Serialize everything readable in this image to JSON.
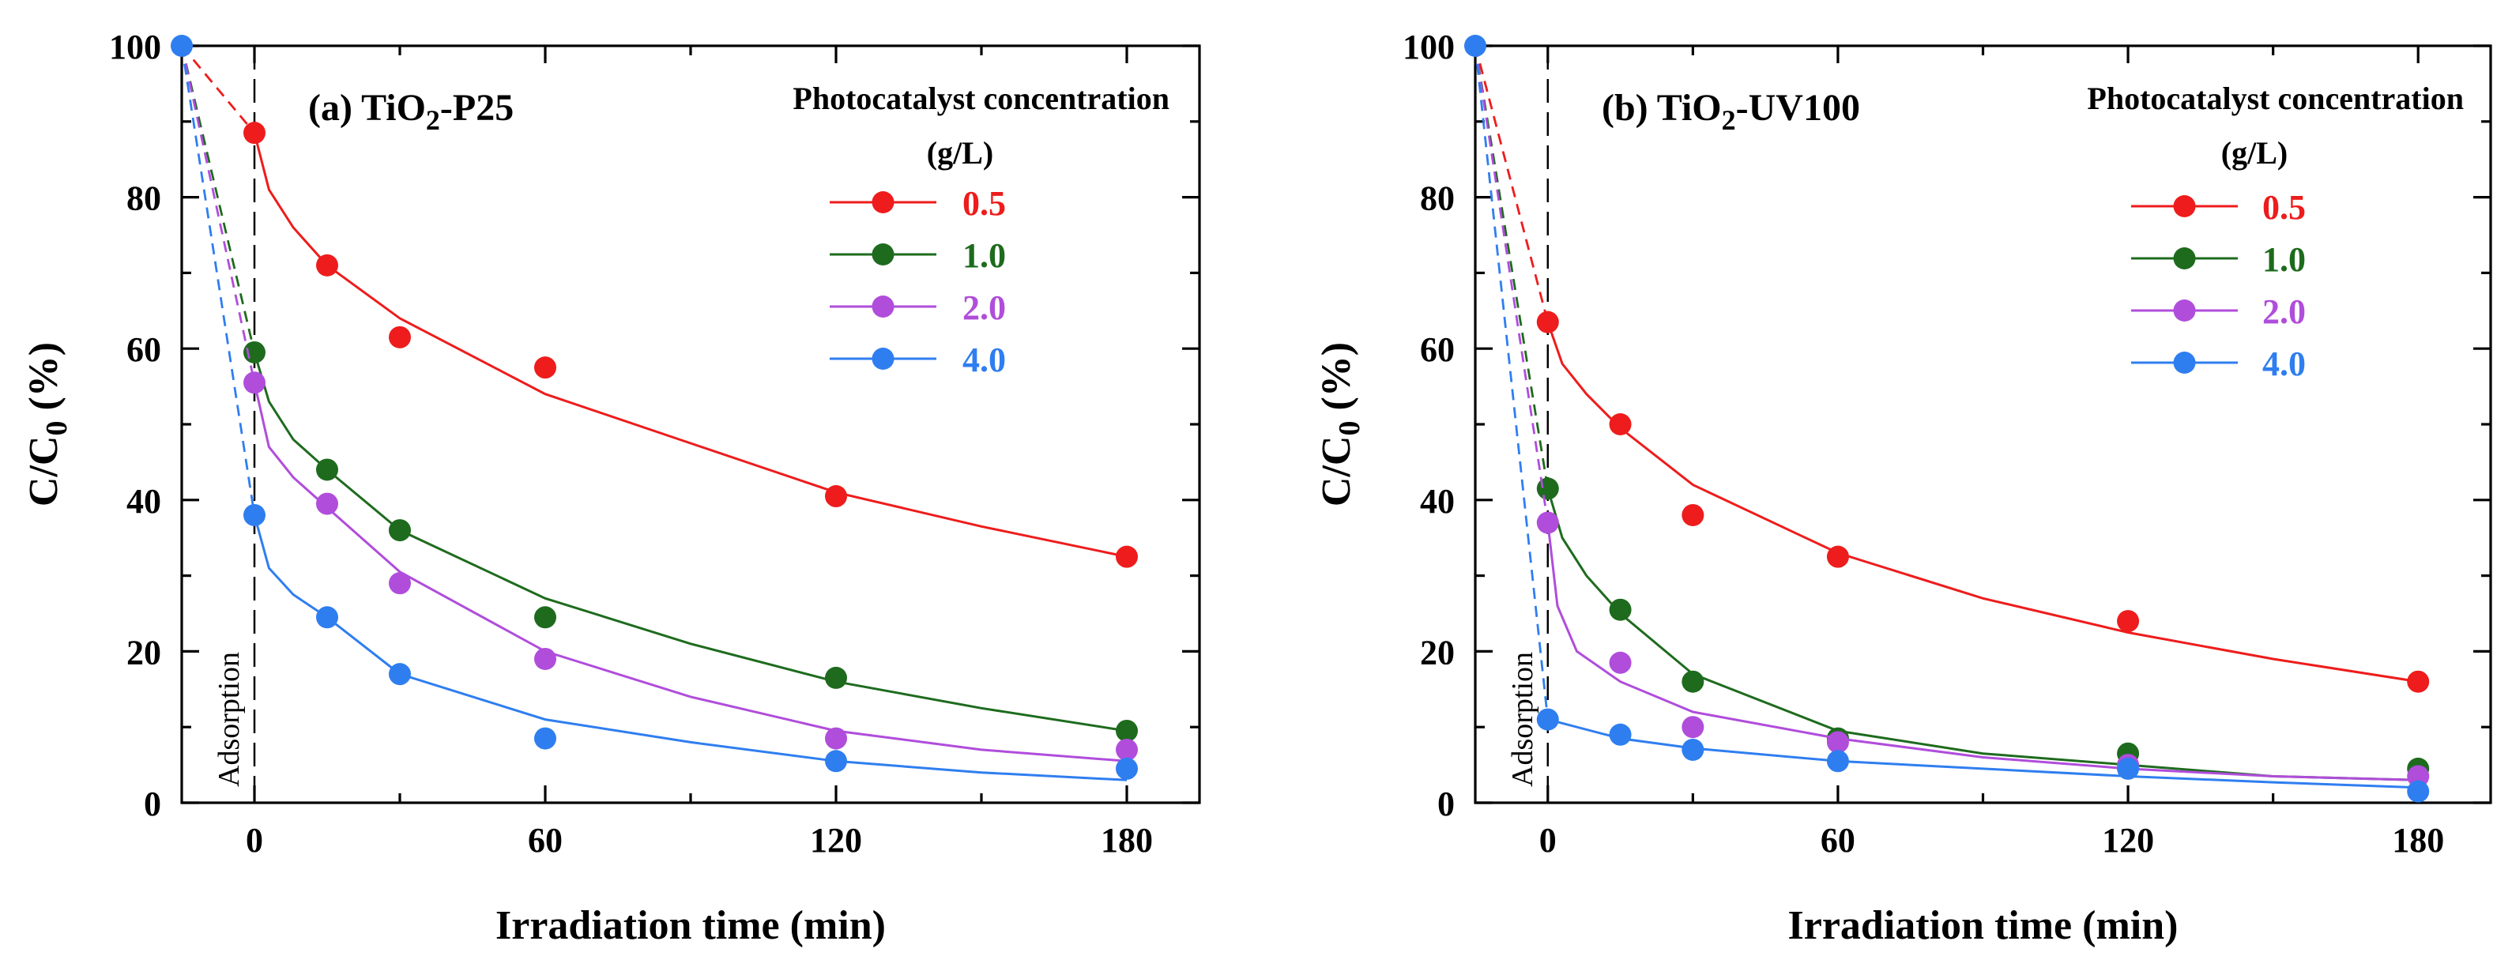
{
  "chart_data": [
    {
      "type": "scatter",
      "id": "a",
      "title_prefix": "(a) TiO",
      "title_sub": "2",
      "title_suffix": "-P25",
      "xlabel": "Irradiation time (min)",
      "ylabel_main": "C/C",
      "ylabel_sub": "0",
      "ylabel_suffix": " (%)",
      "xlim": [
        -15,
        195
      ],
      "ylim": [
        0,
        100
      ],
      "xticks": [
        "0",
        "60",
        "120",
        "180"
      ],
      "xtick_values": [
        0,
        60,
        120,
        180
      ],
      "yticks": [
        "0",
        "20",
        "40",
        "60",
        "80",
        "100"
      ],
      "ytick_values": [
        0,
        20,
        40,
        60,
        80,
        100
      ],
      "annotation": "Adsorption",
      "legend_title_line1": "Photocatalyst concentration",
      "legend_title_line2": "(g/L)",
      "start_point": {
        "x": -15,
        "y": 100
      },
      "series": [
        {
          "name": "0.5",
          "color": "#ee1c1c",
          "x": [
            0,
            15,
            30,
            60,
            120,
            180
          ],
          "y": [
            88.5,
            71,
            61.5,
            57.5,
            40.5,
            32.5
          ],
          "fit": [
            [
              0,
              88.5
            ],
            [
              3,
              81
            ],
            [
              8,
              76
            ],
            [
              15,
              71
            ],
            [
              30,
              64
            ],
            [
              60,
              54
            ],
            [
              90,
              47.5
            ],
            [
              120,
              41
            ],
            [
              150,
              36.5
            ],
            [
              180,
              32.5
            ]
          ]
        },
        {
          "name": "1.0",
          "color": "#1e6b1e",
          "x": [
            0,
            15,
            30,
            60,
            120,
            180
          ],
          "y": [
            59.5,
            44,
            36,
            24.5,
            16.5,
            9.5
          ],
          "fit": [
            [
              0,
              59.5
            ],
            [
              3,
              53
            ],
            [
              8,
              48
            ],
            [
              15,
              44
            ],
            [
              30,
              36
            ],
            [
              60,
              27
            ],
            [
              90,
              21
            ],
            [
              120,
              16
            ],
            [
              150,
              12.5
            ],
            [
              180,
              9.5
            ]
          ]
        },
        {
          "name": "2.0",
          "color": "#b04ddb",
          "x": [
            0,
            15,
            30,
            60,
            120,
            180
          ],
          "y": [
            55.5,
            39.5,
            29,
            19,
            8.5,
            7
          ],
          "fit": [
            [
              0,
              55.5
            ],
            [
              3,
              47
            ],
            [
              8,
              43
            ],
            [
              15,
              39
            ],
            [
              30,
              30.5
            ],
            [
              60,
              20
            ],
            [
              90,
              14
            ],
            [
              120,
              9.5
            ],
            [
              150,
              7
            ],
            [
              180,
              5.5
            ]
          ]
        },
        {
          "name": "4.0",
          "color": "#2f7ef0",
          "x": [
            0,
            15,
            30,
            60,
            120,
            180
          ],
          "y": [
            38,
            24.5,
            17,
            8.5,
            5.5,
            4.5
          ],
          "fit": [
            [
              0,
              38
            ],
            [
              3,
              31
            ],
            [
              8,
              27.5
            ],
            [
              15,
              24.5
            ],
            [
              30,
              17
            ],
            [
              60,
              11
            ],
            [
              90,
              8
            ],
            [
              120,
              5.5
            ],
            [
              150,
              4
            ],
            [
              180,
              3
            ]
          ]
        }
      ]
    },
    {
      "type": "scatter",
      "id": "b",
      "title_prefix": "(b) TiO",
      "title_sub": "2",
      "title_suffix": "-UV100",
      "xlabel": "Irradiation time (min)",
      "ylabel_main": "C/C",
      "ylabel_sub": "0",
      "ylabel_suffix": " (%)",
      "xlim": [
        -15,
        195
      ],
      "ylim": [
        0,
        100
      ],
      "xticks": [
        "0",
        "60",
        "120",
        "180"
      ],
      "xtick_values": [
        0,
        60,
        120,
        180
      ],
      "yticks": [
        "0",
        "20",
        "40",
        "60",
        "80",
        "100"
      ],
      "ytick_values": [
        0,
        20,
        40,
        60,
        80,
        100
      ],
      "annotation": "Adsorption",
      "legend_title_line1": "Photocatalyst concentration",
      "legend_title_line2": "(g/L)",
      "start_point": {
        "x": -15,
        "y": 100
      },
      "series": [
        {
          "name": "0.5",
          "color": "#ee1c1c",
          "x": [
            0,
            15,
            30,
            60,
            120,
            180
          ],
          "y": [
            63.5,
            50,
            38,
            32.5,
            24,
            16
          ],
          "fit": [
            [
              0,
              63.5
            ],
            [
              3,
              58
            ],
            [
              8,
              54
            ],
            [
              15,
              49.5
            ],
            [
              30,
              42
            ],
            [
              60,
              33
            ],
            [
              90,
              27
            ],
            [
              120,
              22.5
            ],
            [
              150,
              19
            ],
            [
              180,
              16
            ]
          ]
        },
        {
          "name": "1.0",
          "color": "#1e6b1e",
          "x": [
            0,
            15,
            30,
            60,
            120,
            180
          ],
          "y": [
            41.5,
            25.5,
            16,
            8.5,
            6.5,
            4.5
          ],
          "fit": [
            [
              0,
              41.5
            ],
            [
              3,
              35
            ],
            [
              8,
              30
            ],
            [
              15,
              25
            ],
            [
              30,
              17
            ],
            [
              60,
              9.5
            ],
            [
              90,
              6.5
            ],
            [
              120,
              5
            ],
            [
              150,
              3.5
            ],
            [
              180,
              3
            ]
          ]
        },
        {
          "name": "2.0",
          "color": "#b04ddb",
          "x": [
            0,
            15,
            30,
            60,
            120,
            180
          ],
          "y": [
            37,
            18.5,
            10,
            8,
            5,
            3.5
          ],
          "fit": [
            [
              0,
              37
            ],
            [
              2,
              26
            ],
            [
              6,
              20
            ],
            [
              15,
              16
            ],
            [
              30,
              12
            ],
            [
              60,
              8.5
            ],
            [
              90,
              6
            ],
            [
              120,
              4.5
            ],
            [
              150,
              3.5
            ],
            [
              180,
              3
            ]
          ]
        },
        {
          "name": "4.0",
          "color": "#2f7ef0",
          "x": [
            0,
            15,
            30,
            60,
            120,
            180
          ],
          "y": [
            11,
            9,
            7,
            5.5,
            4.5,
            1.5
          ],
          "fit": [
            [
              0,
              11
            ],
            [
              15,
              8.5
            ],
            [
              30,
              7.2
            ],
            [
              60,
              5.5
            ],
            [
              90,
              4.5
            ],
            [
              120,
              3.5
            ],
            [
              150,
              2.7
            ],
            [
              180,
              2
            ]
          ]
        }
      ]
    }
  ]
}
